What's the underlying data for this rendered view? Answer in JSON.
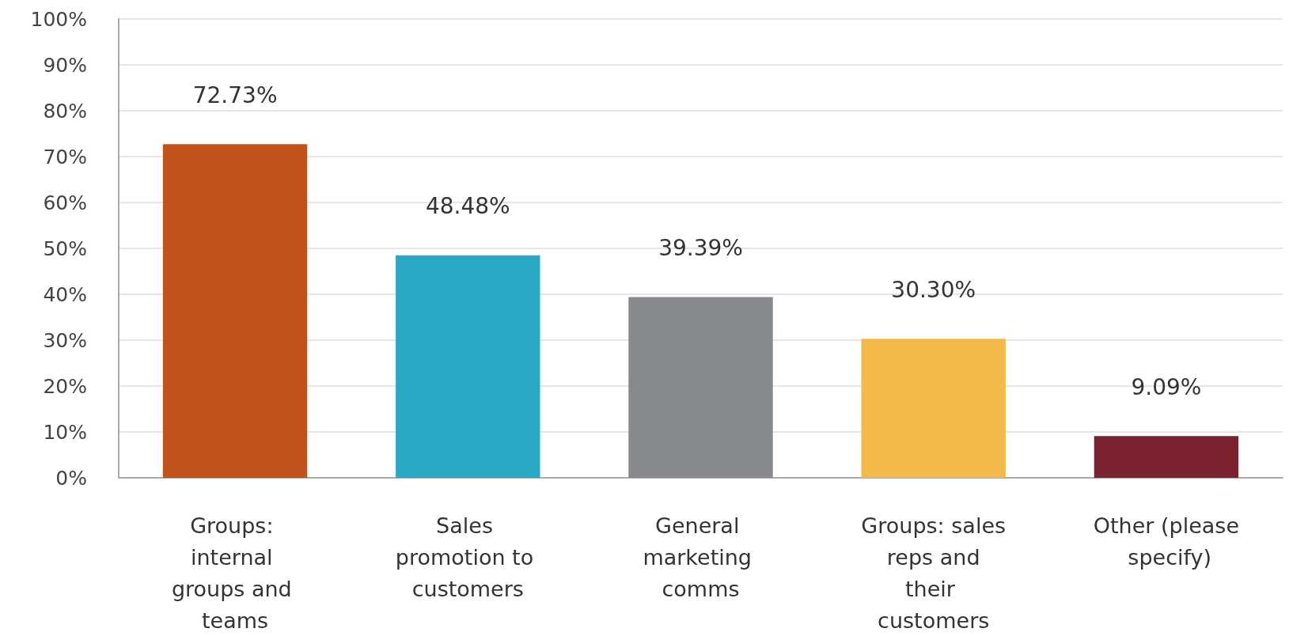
{
  "chart_data": {
    "type": "bar",
    "categories": [
      "Groups: internal groups and teams",
      "Sales promotion to customers",
      "General marketing comms",
      "Groups: sales reps and their customers",
      "Other (please specify)"
    ],
    "values": [
      72.73,
      48.48,
      39.39,
      30.3,
      9.09
    ],
    "colors": [
      "#c0531b",
      "#29a9c4",
      "#88898c",
      "#f3b94a",
      "#7a2230"
    ],
    "value_labels": [
      "72.73%",
      "48.48%",
      "39.39%",
      "30.30%",
      "9.09%"
    ],
    "ylim": [
      0,
      100
    ],
    "yticks": [
      {
        "value": 0,
        "label": "0%"
      },
      {
        "value": 10,
        "label": "10%"
      },
      {
        "value": 20,
        "label": "20%"
      },
      {
        "value": 30,
        "label": "30%"
      },
      {
        "value": 40,
        "label": "40%"
      },
      {
        "value": 50,
        "label": "50%"
      },
      {
        "value": 60,
        "label": "60%"
      },
      {
        "value": 70,
        "label": "70%"
      },
      {
        "value": 80,
        "label": "80%"
      },
      {
        "value": 90,
        "label": "90%"
      },
      {
        "value": 100,
        "label": "100%"
      }
    ],
    "grid": "y"
  }
}
